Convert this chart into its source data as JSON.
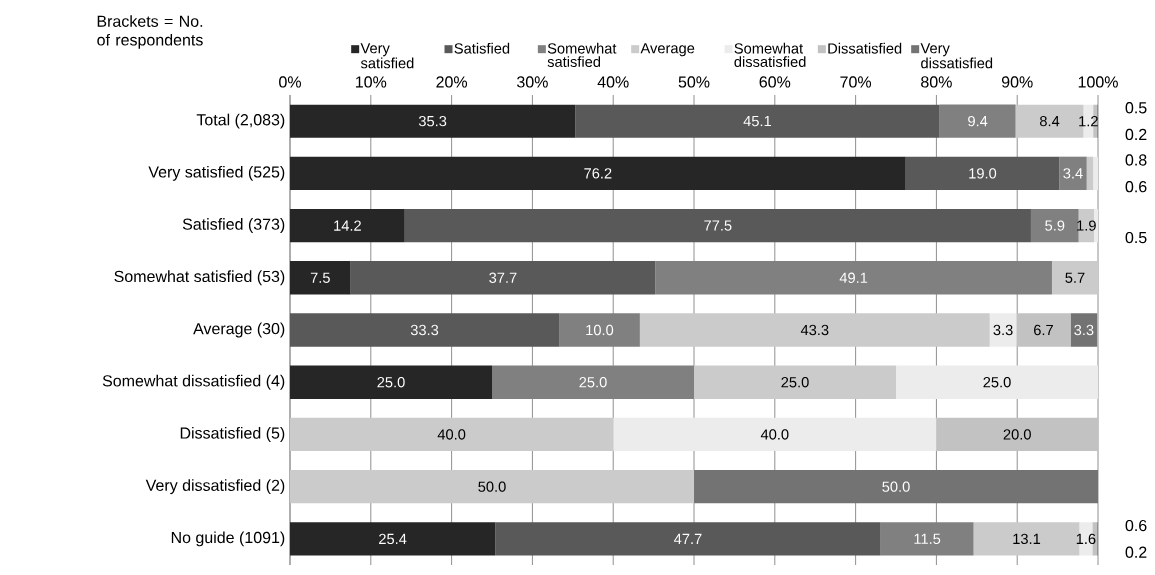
{
  "chart_data": {
    "type": "bar",
    "orientation": "horizontal",
    "stacked": true,
    "legend": "top",
    "grid": "x",
    "annotations": [
      "Brackets = No. of respondents"
    ],
    "categories": [
      "Total (2,083)",
      "Very satisfied (525)",
      "Satisfied (373)",
      "Somewhat satisfied (53)",
      "Average (30)",
      "Somewhat dissatisfied (4)",
      "Dissatisfied (5)",
      "Very dissatisfied (2)",
      "No guide (1091)"
    ],
    "xlim": [
      0,
      100
    ],
    "xticks": [
      {
        "value": 0,
        "label": "0%"
      },
      {
        "value": 10,
        "label": "10%"
      },
      {
        "value": 20,
        "label": "20%"
      },
      {
        "value": 30,
        "label": "30%"
      },
      {
        "value": 40,
        "label": "40%"
      },
      {
        "value": 50,
        "label": "50%"
      },
      {
        "value": 60,
        "label": "60%"
      },
      {
        "value": 70,
        "label": "70%"
      },
      {
        "value": 80,
        "label": "80%"
      },
      {
        "value": 90,
        "label": "90%"
      },
      {
        "value": 100,
        "label": "100%"
      }
    ],
    "series": [
      {
        "name": "Very satisfied",
        "color": "#262626",
        "values": [
          35.3,
          76.2,
          14.2,
          7.5,
          0,
          25.0,
          0,
          0,
          25.4
        ],
        "value_labels": [
          "35.3",
          "76.2",
          "14.2",
          "7.5",
          null,
          "25.0",
          null,
          null,
          "25.4"
        ]
      },
      {
        "name": "Satisfied",
        "color": "#595959",
        "values": [
          45.1,
          19.0,
          77.5,
          37.7,
          33.3,
          0,
          0,
          0,
          47.7
        ],
        "value_labels": [
          "45.1",
          "19.0",
          "77.5",
          "37.7",
          "33.3",
          null,
          null,
          null,
          "47.7"
        ]
      },
      {
        "name": "Somewhat satisfied",
        "color": "#808080",
        "values": [
          9.4,
          3.4,
          5.9,
          49.1,
          10.0,
          25.0,
          0,
          0,
          11.5
        ],
        "value_labels": [
          "9.4",
          "3.4",
          "5.9",
          "49.1",
          "10.0",
          "25.0",
          null,
          null,
          "11.5"
        ]
      },
      {
        "name": "Average",
        "color": "#cbcbcb",
        "values": [
          8.4,
          0.8,
          1.9,
          5.7,
          43.3,
          25.0,
          40.0,
          50.0,
          13.1
        ],
        "value_labels": [
          "8.4",
          "0.8",
          "1.9",
          "5.7",
          "43.3",
          "25.0",
          "40.0",
          "50.0",
          "13.1"
        ]
      },
      {
        "name": "Somewhat dissatisfied",
        "color": "#ececec",
        "values": [
          1.2,
          0.6,
          0.5,
          0,
          3.3,
          25.0,
          40.0,
          0,
          1.6
        ],
        "value_labels": [
          "1.2",
          "0.6",
          "0.5",
          null,
          "3.3",
          "25.0",
          "40.0",
          null,
          "1.6"
        ]
      },
      {
        "name": "Dissatisfied",
        "color": "#c2c2c2",
        "values": [
          0.5,
          0,
          0,
          0,
          6.7,
          0,
          20.0,
          0,
          0.6
        ],
        "value_labels": [
          "0.5",
          null,
          null,
          null,
          "6.7",
          null,
          "20.0",
          null,
          "0.6"
        ]
      },
      {
        "name": "Very dissatisfied",
        "color": "#737373",
        "values": [
          0.2,
          0,
          0,
          0,
          3.3,
          0,
          0,
          50.0,
          0.2
        ],
        "value_labels": [
          "0.2",
          null,
          null,
          null,
          "3.3",
          null,
          null,
          "50.0",
          "0.2"
        ]
      }
    ]
  }
}
